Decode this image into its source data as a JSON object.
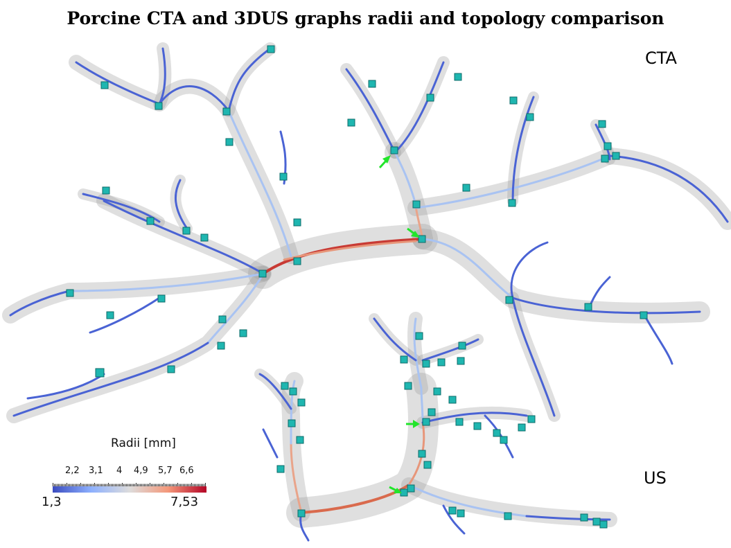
{
  "title": "Porcine CTA and 3DUS graphs radii and topology comparison",
  "panels": {
    "cta_label": "CTA",
    "us_label": "US"
  },
  "legend": {
    "title": "Radii [mm]",
    "min": "1,3",
    "max": "7,53",
    "ticks": [
      "2,2",
      "3,1",
      "4",
      "4,9",
      "5,7",
      "6,6"
    ],
    "colormap": [
      "#3b4cc0",
      "#8db0fe",
      "#dddcdc",
      "#f4987a",
      "#b40426"
    ]
  },
  "colors": {
    "vessel_small": "#4a63d4",
    "vessel_mid": "#a9c3f2",
    "vessel_large": "#c83a34",
    "junction": "#1fb6b0",
    "marker": "#22e52b"
  }
}
